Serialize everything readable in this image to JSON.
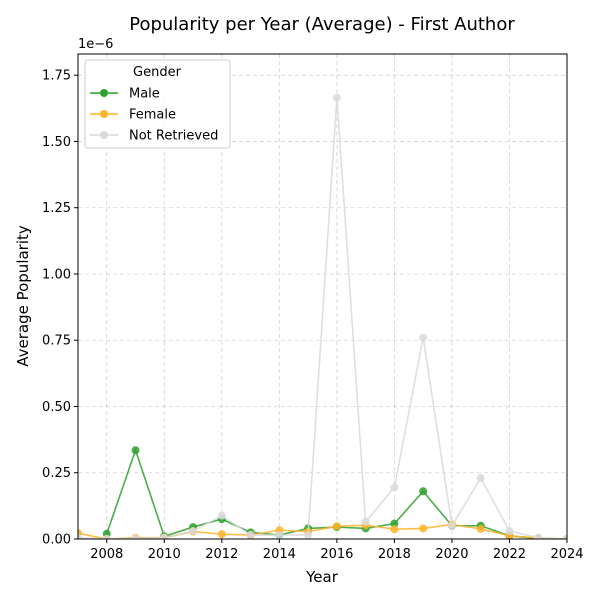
{
  "chart_data": {
    "type": "line",
    "title": "Popularity per Year (Average) - First Author",
    "xlabel": "Year",
    "ylabel": "Average Popularity",
    "y_scale_label": "1e−6",
    "xlim": [
      2007,
      2024
    ],
    "ylim": [
      0,
      1.83
    ],
    "x_ticks": [
      2008,
      2010,
      2012,
      2014,
      2016,
      2018,
      2020,
      2022,
      2024
    ],
    "x_tick_labels": [
      "2008",
      "2010",
      "2012",
      "2014",
      "2016",
      "2018",
      "2020",
      "2022",
      "2024"
    ],
    "y_ticks": [
      0,
      0.25,
      0.5,
      0.75,
      1.0,
      1.25,
      1.5,
      1.75
    ],
    "y_tick_labels": [
      "0.00",
      "0.25",
      "0.50",
      "0.75",
      "1.00",
      "1.25",
      "1.50",
      "1.75"
    ],
    "grid": true,
    "legend": {
      "title": "Gender",
      "placement": "top-left"
    },
    "series": [
      {
        "name": "Male",
        "color": "#2ca02c",
        "points": [
          [
            2008,
            0.02
          ],
          [
            2009,
            0.335
          ],
          [
            2010,
            0.01
          ],
          [
            2011,
            0.045
          ],
          [
            2012,
            0.075
          ],
          [
            2013,
            0.025
          ],
          [
            2014,
            0.015
          ],
          [
            2015,
            0.04
          ],
          [
            2016,
            0.045
          ],
          [
            2017,
            0.04
          ],
          [
            2018,
            0.058
          ],
          [
            2019,
            0.18
          ],
          [
            2020,
            0.05
          ],
          [
            2021,
            0.05
          ],
          [
            2022,
            0.012
          ],
          [
            2023,
            0.002
          ],
          [
            2024,
            0.0
          ]
        ]
      },
      {
        "name": "Female",
        "color": "#ffb32a",
        "points": [
          [
            2007,
            0.022
          ],
          [
            2008,
            0.0
          ],
          [
            2009,
            0.005
          ],
          [
            2010,
            0.005
          ],
          [
            2011,
            0.028
          ],
          [
            2012,
            0.018
          ],
          [
            2013,
            0.015
          ],
          [
            2014,
            0.033
          ],
          [
            2015,
            0.028
          ],
          [
            2016,
            0.048
          ],
          [
            2017,
            0.052
          ],
          [
            2018,
            0.037
          ],
          [
            2019,
            0.04
          ],
          [
            2020,
            0.055
          ],
          [
            2021,
            0.038
          ],
          [
            2022,
            0.012
          ],
          [
            2023,
            0.003
          ],
          [
            2024,
            0.0
          ]
        ]
      },
      {
        "name": "Not Retrieved",
        "color": "#d9d9d9",
        "points": [
          [
            2007,
            0.005
          ],
          [
            2008,
            0.0
          ],
          [
            2009,
            0.002
          ],
          [
            2010,
            0.005
          ],
          [
            2011,
            0.03
          ],
          [
            2012,
            0.088
          ],
          [
            2013,
            0.015
          ],
          [
            2014,
            0.015
          ],
          [
            2015,
            0.015
          ],
          [
            2016,
            1.665
          ],
          [
            2017,
            0.065
          ],
          [
            2018,
            0.195
          ],
          [
            2019,
            0.76
          ],
          [
            2020,
            0.05
          ],
          [
            2021,
            0.23
          ],
          [
            2022,
            0.03
          ],
          [
            2023,
            0.005
          ],
          [
            2024,
            0.0
          ]
        ]
      }
    ]
  }
}
